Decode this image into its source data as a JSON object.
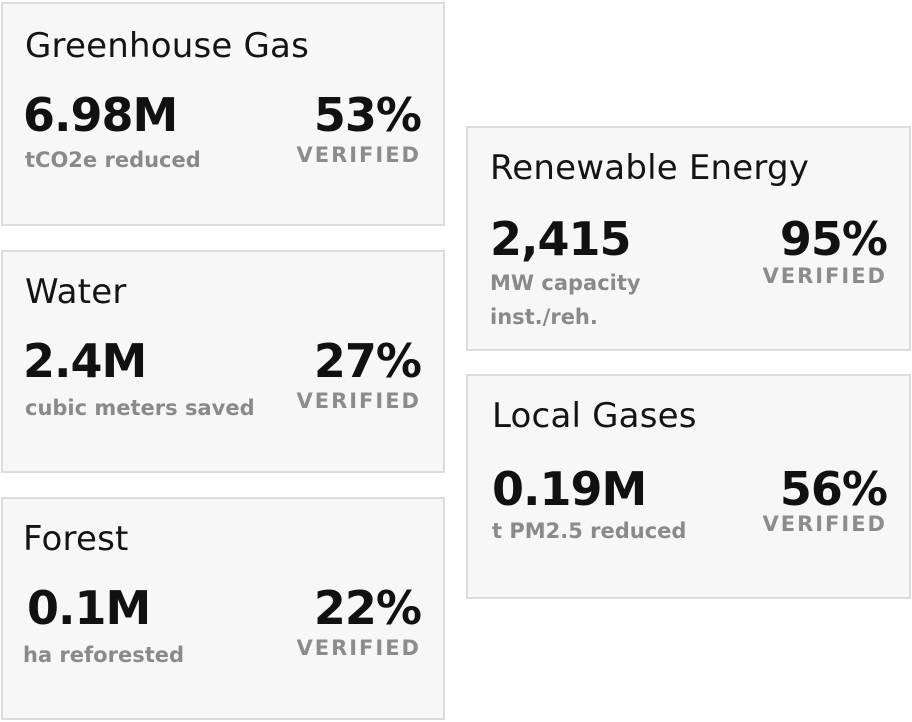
{
  "cards": {
    "greenhouse": {
      "title": "Greenhouse Gas",
      "value": "6.98M",
      "unit": "tCO2e reduced",
      "percent": "53%",
      "status": "VERIFIED"
    },
    "water": {
      "title": "Water",
      "value": "2.4M",
      "unit": "cubic meters saved",
      "percent": "27%",
      "status": "VERIFIED"
    },
    "forest": {
      "title": "Forest",
      "value": "0.1M",
      "unit": "ha reforested",
      "percent": "22%",
      "status": "VERIFIED"
    },
    "renewable": {
      "title": "Renewable Energy",
      "value": "2,415",
      "unit_line1": "MW capacity",
      "unit_line2": "inst./reh.",
      "percent": "95%",
      "status": "VERIFIED"
    },
    "local_gases": {
      "title": "Local Gases",
      "value": "0.19M",
      "unit": "t PM2.5 reduced",
      "percent": "56%",
      "status": "VERIFIED"
    }
  }
}
